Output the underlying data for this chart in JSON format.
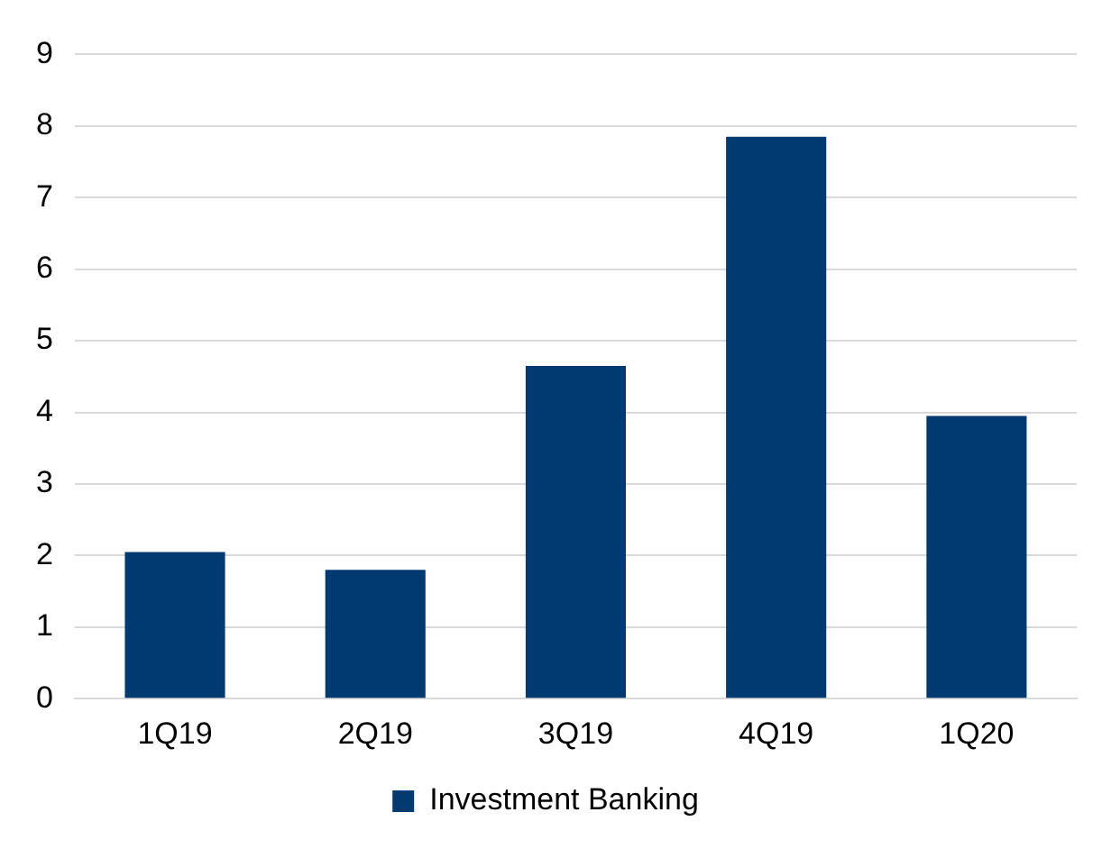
{
  "chart_data": {
    "type": "bar",
    "categories": [
      "1Q19",
      "2Q19",
      "3Q19",
      "4Q19",
      "1Q20"
    ],
    "series": [
      {
        "name": "Investment Banking",
        "color": "#003a70",
        "values": [
          2.05,
          1.8,
          4.65,
          7.85,
          3.95
        ]
      }
    ],
    "ylim": [
      0,
      9
    ],
    "yticks": [
      0,
      1,
      2,
      3,
      4,
      5,
      6,
      7,
      8,
      9
    ],
    "grid": "y",
    "legend": "bottom"
  }
}
